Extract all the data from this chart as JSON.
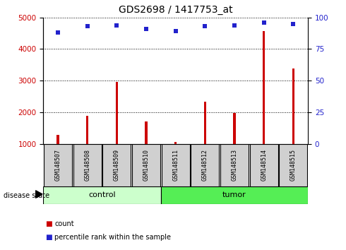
{
  "title": "GDS2698 / 1417753_at",
  "samples": [
    "GSM148507",
    "GSM148508",
    "GSM148509",
    "GSM148510",
    "GSM148511",
    "GSM148512",
    "GSM148513",
    "GSM148514",
    "GSM148515"
  ],
  "counts": [
    1280,
    1880,
    2970,
    1700,
    1060,
    2340,
    1980,
    4560,
    3390
  ],
  "percentiles": [
    88,
    93,
    94,
    91,
    89,
    93,
    94,
    96,
    95
  ],
  "left_ylim": [
    1000,
    5000
  ],
  "right_ylim": [
    0,
    100
  ],
  "left_yticks": [
    1000,
    2000,
    3000,
    4000,
    5000
  ],
  "right_yticks": [
    0,
    25,
    50,
    75,
    100
  ],
  "bar_color": "#cc0000",
  "dot_color": "#2222cc",
  "control_color": "#ccffcc",
  "tumor_color": "#55ee55",
  "grid_color": "#000000",
  "title_fontsize": 10,
  "tick_fontsize": 7.5,
  "bar_width": 0.08,
  "n_control": 4,
  "n_tumor": 5
}
